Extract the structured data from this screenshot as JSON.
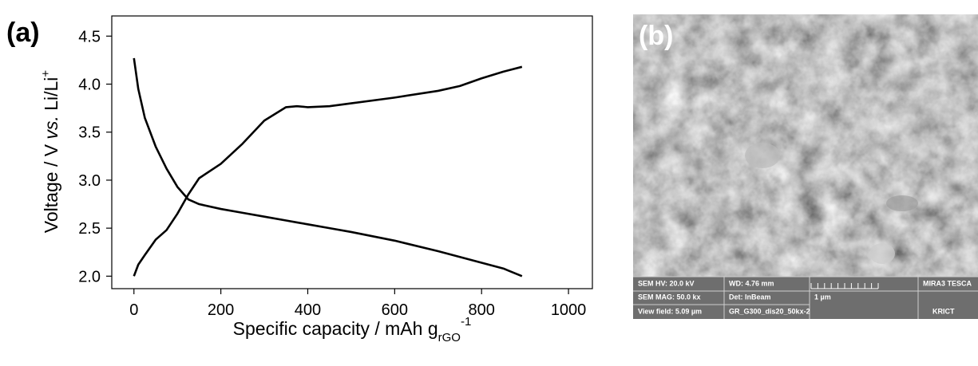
{
  "chart_data": {
    "type": "line",
    "panel_label": "(a)",
    "xlabel": {
      "text": "Specific capacity / mAh g",
      "sub": "rGO",
      "sup": "-1"
    },
    "ylabel": {
      "text": "Voltage / V ",
      "italic": "vs.",
      "rest": " Li/Li",
      "sup": "+"
    },
    "x": [
      0,
      10,
      25,
      50,
      75,
      100,
      125,
      150,
      200,
      250,
      300,
      350,
      375,
      400,
      450,
      500,
      600,
      700,
      750,
      800,
      850,
      893
    ],
    "series": [
      {
        "color": "#000000",
        "values": [
          2.0,
          2.12,
          2.22,
          2.38,
          2.48,
          2.65,
          2.85,
          3.02,
          3.17,
          3.38,
          3.62,
          3.76,
          3.77,
          3.76,
          3.77,
          3.8,
          3.86,
          3.93,
          3.98,
          4.06,
          4.13,
          4.18
        ]
      },
      {
        "color": "#000000",
        "values": [
          4.27,
          3.95,
          3.65,
          3.35,
          3.12,
          2.93,
          2.8,
          2.75,
          2.7,
          2.66,
          2.62,
          2.58,
          2.56,
          2.54,
          2.5,
          2.46,
          2.37,
          2.26,
          2.2,
          2.14,
          2.08,
          2.0
        ]
      }
    ],
    "xlim": [
      -51,
      1055
    ],
    "ylim": [
      1.87,
      4.71
    ],
    "xticks": [
      0,
      200,
      400,
      600,
      800,
      1000
    ],
    "yticks": [
      {
        "value": 2,
        "label": "2.0"
      },
      {
        "value": 2.5,
        "label": "2.5"
      },
      {
        "value": 3,
        "label": "3.0"
      },
      {
        "value": 3.5,
        "label": "3.5"
      },
      {
        "value": 4,
        "label": "4.0"
      },
      {
        "value": 4.5,
        "label": "4.5"
      }
    ],
    "grid": false
  },
  "panel_b": {
    "label": "(b)",
    "info": [
      [
        "SEM HV: 20.0 kV",
        "WD: 4.76 mm",
        "MIRA3 TESCA"
      ],
      [
        "SEM MAG: 50.0 kx",
        "Det: InBeam",
        "1 µm"
      ],
      [
        "View field: 5.09 µm",
        "GR_G300_dis20_50kx-2",
        "KRICT"
      ]
    ]
  }
}
